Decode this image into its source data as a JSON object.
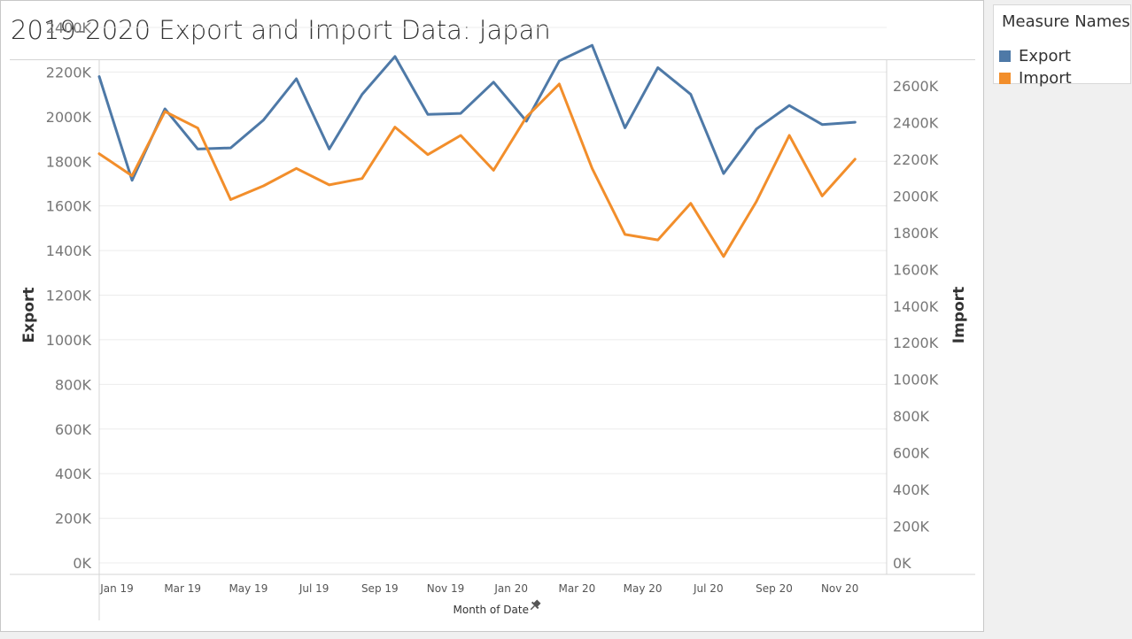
{
  "page": {
    "title": "2019-2020 Export and Import Data: Japan"
  },
  "legend": {
    "title": "Measure Names",
    "items": [
      {
        "label": "Export",
        "color": "#4e79a7"
      },
      {
        "label": "Import",
        "color": "#f28e2b"
      }
    ]
  },
  "chart_data": {
    "type": "line",
    "title": "2019-2020 Export and Import Data: Japan",
    "xlabel": "Month of Date",
    "categories": [
      "Jan 19",
      "Feb 19",
      "Mar 19",
      "Apr 19",
      "May 19",
      "Jun 19",
      "Jul 19",
      "Aug 19",
      "Sep 19",
      "Oct 19",
      "Nov 19",
      "Dec 19",
      "Jan 20",
      "Feb 20",
      "Mar 20",
      "Apr 20",
      "May 20",
      "Jun 20",
      "Jul 20",
      "Aug 20",
      "Sep 20",
      "Oct 20",
      "Nov 20",
      "Dec 20"
    ],
    "x_tick_labels": [
      "Jan 19",
      "Mar 19",
      "May 19",
      "Jul 19",
      "Sep 19",
      "Nov 19",
      "Jan 20",
      "Mar 20",
      "May 20",
      "Jul 20",
      "Sep 20",
      "Nov 20"
    ],
    "series": [
      {
        "name": "Export",
        "axis": "left",
        "color": "#4e79a7",
        "values": [
          2180,
          1715,
          2035,
          1855,
          1860,
          1985,
          2170,
          1855,
          2100,
          2270,
          2010,
          2015,
          2155,
          1980,
          2250,
          2320,
          1950,
          2220,
          2100,
          1745,
          1945,
          2050,
          1965,
          1975
        ]
      },
      {
        "name": "Import",
        "axis": "right",
        "color": "#f28e2b",
        "values": [
          2230,
          2110,
          2460,
          2370,
          1980,
          2055,
          2150,
          2060,
          2095,
          2375,
          2225,
          2330,
          2140,
          2430,
          2610,
          2150,
          1790,
          1760,
          1960,
          1670,
          1970,
          2330,
          2000,
          2200
        ]
      }
    ],
    "y_left": {
      "label": "Export",
      "range": [
        0,
        2400
      ],
      "ticks": [
        "0K",
        "200K",
        "400K",
        "600K",
        "800K",
        "1000K",
        "1200K",
        "1400K",
        "1600K",
        "1800K",
        "2000K",
        "2200K",
        "2400K"
      ]
    },
    "y_right": {
      "label": "Import",
      "range": [
        0,
        2600
      ],
      "ticks": [
        "0K",
        "200K",
        "400K",
        "600K",
        "800K",
        "1000K",
        "1200K",
        "1400K",
        "1600K",
        "1800K",
        "2000K",
        "2200K",
        "2400K",
        "2600K"
      ]
    },
    "grid": true
  }
}
